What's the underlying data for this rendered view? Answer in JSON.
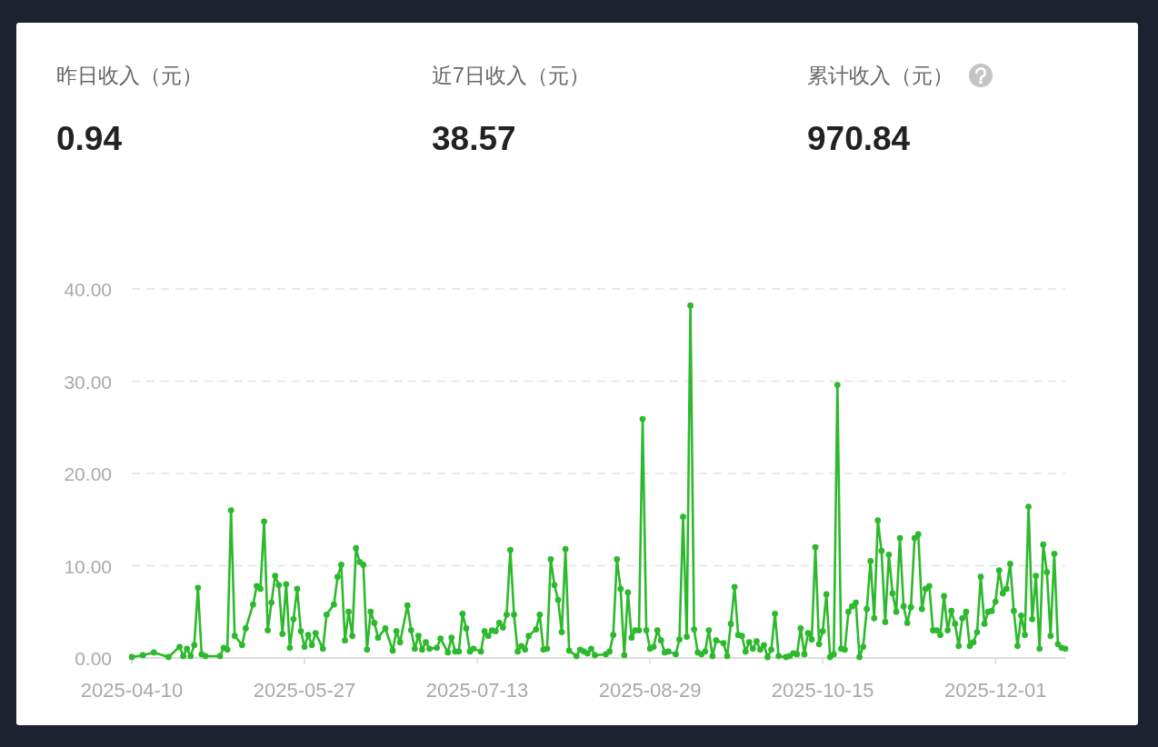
{
  "chart_data": [
    {
      "type": "other",
      "categories": [
        "昨日收入（元）",
        "近7日收入（元）",
        "累计收入（元）"
      ],
      "values": [
        0.94,
        38.57,
        970.84
      ],
      "data_labels": true
    },
    {
      "type": "line",
      "color": "#2db92d",
      "marker": "circle",
      "line_style": "solid",
      "grid": "y",
      "xlim": [
        "2025-04-10",
        "2025-12-20"
      ],
      "xticks": [
        "2025-04-10",
        "2025-05-27",
        "2025-07-13",
        "2025-08-29",
        "2025-10-15",
        "2025-12-01"
      ],
      "ylim": [
        0,
        40
      ],
      "yticks": [
        {
          "value": 0,
          "label": "0.00"
        },
        {
          "value": 10,
          "label": "10.00"
        },
        {
          "value": 20,
          "label": "20.00"
        },
        {
          "value": 30,
          "label": "30.00"
        },
        {
          "value": 40,
          "label": "40.00"
        }
      ],
      "x": [
        "2025-04-10",
        "2025-04-13",
        "2025-04-16",
        "2025-04-20",
        "2025-04-23",
        "2025-04-24",
        "2025-04-25",
        "2025-04-26",
        "2025-04-27",
        "2025-04-28",
        "2025-04-29",
        "2025-04-30",
        "2025-05-04",
        "2025-05-05",
        "2025-05-06",
        "2025-05-07",
        "2025-05-08",
        "2025-05-10",
        "2025-05-11",
        "2025-05-13",
        "2025-05-14",
        "2025-05-15",
        "2025-05-16",
        "2025-05-17",
        "2025-05-18",
        "2025-05-19",
        "2025-05-20",
        "2025-05-21",
        "2025-05-22",
        "2025-05-23",
        "2025-05-24",
        "2025-05-25",
        "2025-05-26",
        "2025-05-27",
        "2025-05-28",
        "2025-05-29",
        "2025-05-30",
        "2025-06-01",
        "2025-06-02",
        "2025-06-04",
        "2025-06-05",
        "2025-06-06",
        "2025-06-07",
        "2025-06-08",
        "2025-06-09",
        "2025-06-10",
        "2025-06-11",
        "2025-06-12",
        "2025-06-13",
        "2025-06-14",
        "2025-06-15",
        "2025-06-16",
        "2025-06-18",
        "2025-06-20",
        "2025-06-21",
        "2025-06-22",
        "2025-06-24",
        "2025-06-25",
        "2025-06-26",
        "2025-06-27",
        "2025-06-28",
        "2025-06-29",
        "2025-06-30",
        "2025-07-02",
        "2025-07-03",
        "2025-07-05",
        "2025-07-06",
        "2025-07-07",
        "2025-07-08",
        "2025-07-09",
        "2025-07-10",
        "2025-07-11",
        "2025-07-12",
        "2025-07-14",
        "2025-07-15",
        "2025-07-16",
        "2025-07-17",
        "2025-07-18",
        "2025-07-19",
        "2025-07-20",
        "2025-07-21",
        "2025-07-22",
        "2025-07-23",
        "2025-07-24",
        "2025-07-25",
        "2025-07-26",
        "2025-07-27",
        "2025-07-29",
        "2025-07-30",
        "2025-07-31",
        "2025-08-01",
        "2025-08-02",
        "2025-08-03",
        "2025-08-04",
        "2025-08-05",
        "2025-08-06",
        "2025-08-07",
        "2025-08-09",
        "2025-08-10",
        "2025-08-11",
        "2025-08-12",
        "2025-08-13",
        "2025-08-14",
        "2025-08-17",
        "2025-08-18",
        "2025-08-19",
        "2025-08-20",
        "2025-08-21",
        "2025-08-22",
        "2025-08-23",
        "2025-08-24",
        "2025-08-25",
        "2025-08-26",
        "2025-08-27",
        "2025-08-28",
        "2025-08-29",
        "2025-08-30",
        "2025-08-31",
        "2025-09-01",
        "2025-09-02",
        "2025-09-03",
        "2025-09-05",
        "2025-09-06",
        "2025-09-07",
        "2025-09-08",
        "2025-09-09",
        "2025-09-10",
        "2025-09-11",
        "2025-09-12",
        "2025-09-13",
        "2025-09-14",
        "2025-09-15",
        "2025-09-16",
        "2025-09-18",
        "2025-09-19",
        "2025-09-20",
        "2025-09-21",
        "2025-09-22",
        "2025-09-23",
        "2025-09-24",
        "2025-09-25",
        "2025-09-26",
        "2025-09-27",
        "2025-09-28",
        "2025-09-29",
        "2025-09-30",
        "2025-10-01",
        "2025-10-02",
        "2025-10-03",
        "2025-10-05",
        "2025-10-06",
        "2025-10-07",
        "2025-10-08",
        "2025-10-09",
        "2025-10-10",
        "2025-10-11",
        "2025-10-12",
        "2025-10-13",
        "2025-10-14",
        "2025-10-15",
        "2025-10-16",
        "2025-10-17",
        "2025-10-18",
        "2025-10-19",
        "2025-10-20",
        "2025-10-21",
        "2025-10-22",
        "2025-10-23",
        "2025-10-24",
        "2025-10-25",
        "2025-10-26",
        "2025-10-27",
        "2025-10-28",
        "2025-10-29",
        "2025-10-30",
        "2025-10-31",
        "2025-11-01",
        "2025-11-02",
        "2025-11-03",
        "2025-11-04",
        "2025-11-05",
        "2025-11-06",
        "2025-11-07",
        "2025-11-08",
        "2025-11-09",
        "2025-11-10",
        "2025-11-11",
        "2025-11-12",
        "2025-11-13",
        "2025-11-14",
        "2025-11-15",
        "2025-11-16",
        "2025-11-17",
        "2025-11-18",
        "2025-11-19",
        "2025-11-20",
        "2025-11-21",
        "2025-11-22",
        "2025-11-23",
        "2025-11-24",
        "2025-11-25",
        "2025-11-26",
        "2025-11-27",
        "2025-11-28",
        "2025-11-29",
        "2025-11-30",
        "2025-12-01",
        "2025-12-02",
        "2025-12-03",
        "2025-12-04",
        "2025-12-05",
        "2025-12-06",
        "2025-12-07",
        "2025-12-08",
        "2025-12-09",
        "2025-12-10",
        "2025-12-11",
        "2025-12-12",
        "2025-12-13",
        "2025-12-14",
        "2025-12-15",
        "2025-12-16",
        "2025-12-17",
        "2025-12-18",
        "2025-12-19",
        "2025-12-20"
      ],
      "values": [
        0.1,
        0.3,
        0.6,
        0.1,
        1.2,
        0.2,
        1.0,
        0.2,
        1.4,
        7.6,
        0.4,
        0.2,
        0.2,
        1.1,
        0.9,
        16.0,
        2.4,
        1.4,
        3.2,
        5.8,
        7.8,
        7.5,
        14.8,
        3.0,
        6.0,
        8.9,
        7.9,
        2.6,
        8.0,
        1.1,
        4.2,
        7.5,
        2.9,
        1.2,
        2.5,
        1.4,
        2.7,
        1.0,
        4.7,
        5.8,
        8.8,
        10.1,
        1.9,
        5.0,
        2.4,
        11.9,
        10.4,
        10.1,
        0.9,
        5.0,
        3.8,
        2.2,
        3.2,
        0.8,
        2.9,
        1.7,
        5.7,
        3.0,
        1.0,
        2.4,
        0.9,
        1.7,
        1.0,
        1.1,
        2.1,
        0.6,
        2.2,
        0.7,
        0.7,
        4.8,
        3.2,
        0.7,
        1.0,
        0.7,
        2.9,
        2.4,
        3.0,
        2.9,
        3.8,
        3.3,
        4.7,
        11.7,
        4.7,
        0.7,
        1.3,
        0.9,
        2.4,
        3.1,
        4.7,
        0.9,
        1.0,
        10.7,
        7.9,
        6.3,
        2.8,
        11.8,
        0.8,
        0.2,
        0.9,
        0.7,
        0.5,
        1.0,
        0.3,
        0.4,
        0.7,
        2.5,
        10.7,
        7.5,
        0.3,
        7.1,
        2.2,
        3.0,
        3.0,
        25.9,
        3.0,
        1.0,
        1.2,
        3.0,
        1.9,
        0.6,
        0.7,
        0.4,
        2.0,
        15.3,
        2.3,
        38.2,
        3.1,
        0.6,
        0.4,
        0.7,
        3.0,
        0.2,
        1.9,
        1.6,
        0.2,
        3.7,
        7.7,
        2.5,
        2.4,
        0.7,
        1.7,
        1.0,
        1.8,
        0.9,
        1.4,
        0.1,
        0.9,
        4.8,
        0.2,
        0.1,
        0.2,
        0.5,
        0.4,
        3.2,
        0.4,
        2.7,
        2.0,
        12.0,
        1.5,
        2.9,
        6.9,
        0.1,
        0.4,
        29.6,
        1.0,
        0.9,
        5.0,
        5.6,
        6.0,
        0.1,
        1.2,
        5.3,
        10.5,
        4.3,
        14.9,
        11.6,
        3.9,
        11.2,
        7.0,
        5.0,
        13.0,
        5.6,
        3.8,
        5.5,
        13.0,
        13.4,
        5.3,
        7.5,
        7.8,
        3.0,
        3.0,
        2.5,
        6.7,
        3.0,
        5.1,
        3.7,
        1.3,
        4.3,
        5.0,
        1.3,
        1.7,
        2.8,
        8.8,
        3.7,
        5.0,
        5.1,
        6.1,
        9.5,
        7.0,
        7.5,
        10.2,
        5.1,
        1.3,
        4.6,
        2.5,
        16.4,
        4.2,
        8.9,
        1.0,
        12.3,
        9.3,
        2.4,
        11.3,
        1.5,
        1.1,
        1.0
      ]
    }
  ]
}
